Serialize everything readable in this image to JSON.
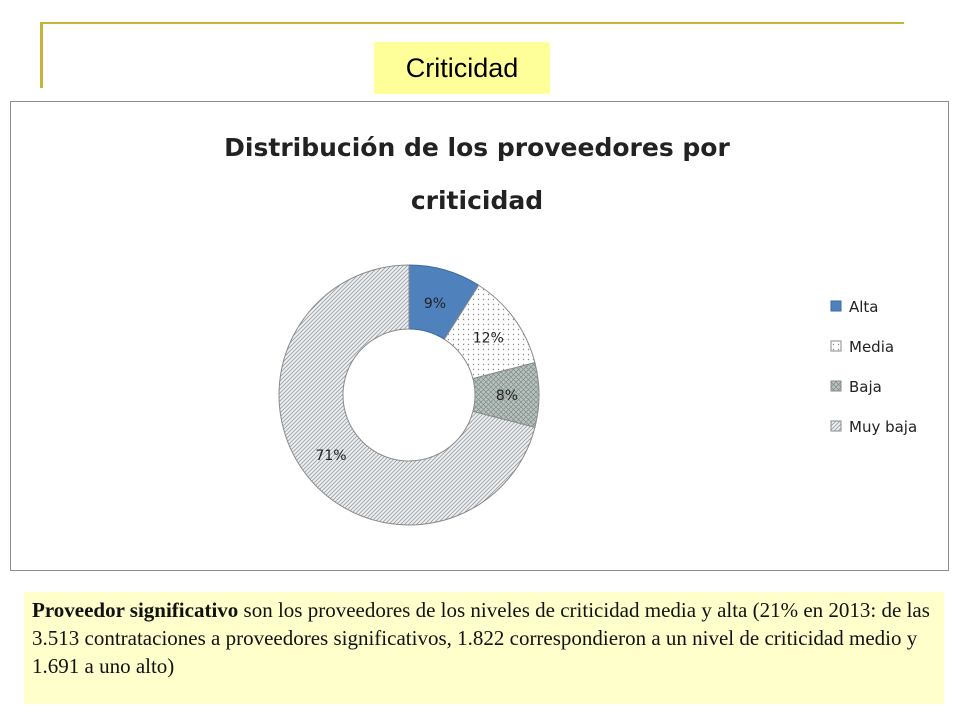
{
  "header": {
    "title": "Criticidad"
  },
  "chart_data": {
    "type": "pie",
    "subtype": "doughnut",
    "title_lines": [
      "Distribución de los proveedores por",
      "criticidad"
    ],
    "categories": [
      "Alta",
      "Media",
      "Baja",
      "Muy baja"
    ],
    "values": [
      9,
      12,
      8,
      71
    ],
    "data_labels": [
      "9%",
      "12%",
      "8%",
      "71%"
    ],
    "legend_placement": "right",
    "colors": [
      "#4f81bd",
      "#ffffff",
      "#b7c3bf",
      "#dfe3e6"
    ],
    "patterns": [
      "solid",
      "dots",
      "crosshatch",
      "diagonal"
    ]
  },
  "note": {
    "bold": "Proveedor significativo",
    "rest": " son los proveedores de los niveles de criticidad media y alta (21% en 2013: de las 3.513 contrataciones a proveedores significativos, 1.822 correspondieron a un nivel de criticidad medio y 1.691 a uno alto)"
  }
}
